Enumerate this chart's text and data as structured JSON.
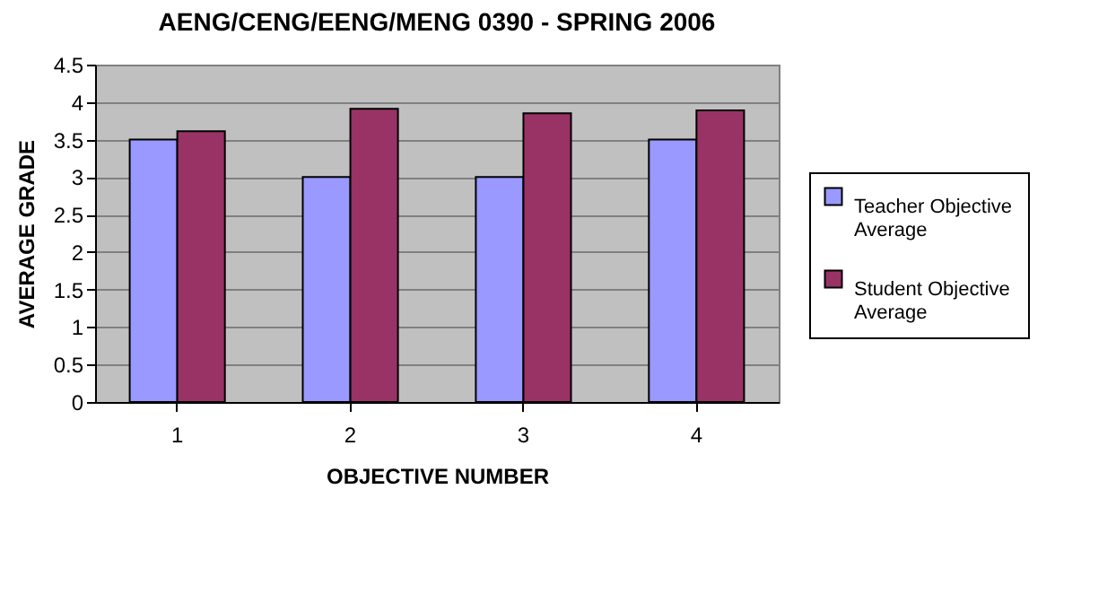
{
  "chart_data": {
    "type": "bar",
    "title": "AENG/CENG/EENG/MENG 0390 - SPRING 2006",
    "xlabel": "OBJECTIVE NUMBER",
    "ylabel": "AVERAGE GRADE",
    "categories": [
      "1",
      "2",
      "3",
      "4"
    ],
    "series": [
      {
        "name": "Teacher Objective Average",
        "color": "#9999ff",
        "values": [
          3.5,
          3,
          3,
          3.5
        ]
      },
      {
        "name": "Student Objective Average",
        "color": "#993366",
        "values": [
          3.61,
          3.91,
          3.85,
          3.89
        ]
      }
    ],
    "ylim": [
      0,
      4.5
    ],
    "yticks": [
      0,
      0.5,
      1,
      1.5,
      2,
      2.5,
      3,
      3.5,
      4,
      4.5
    ],
    "grid": "y",
    "legend": "right"
  }
}
